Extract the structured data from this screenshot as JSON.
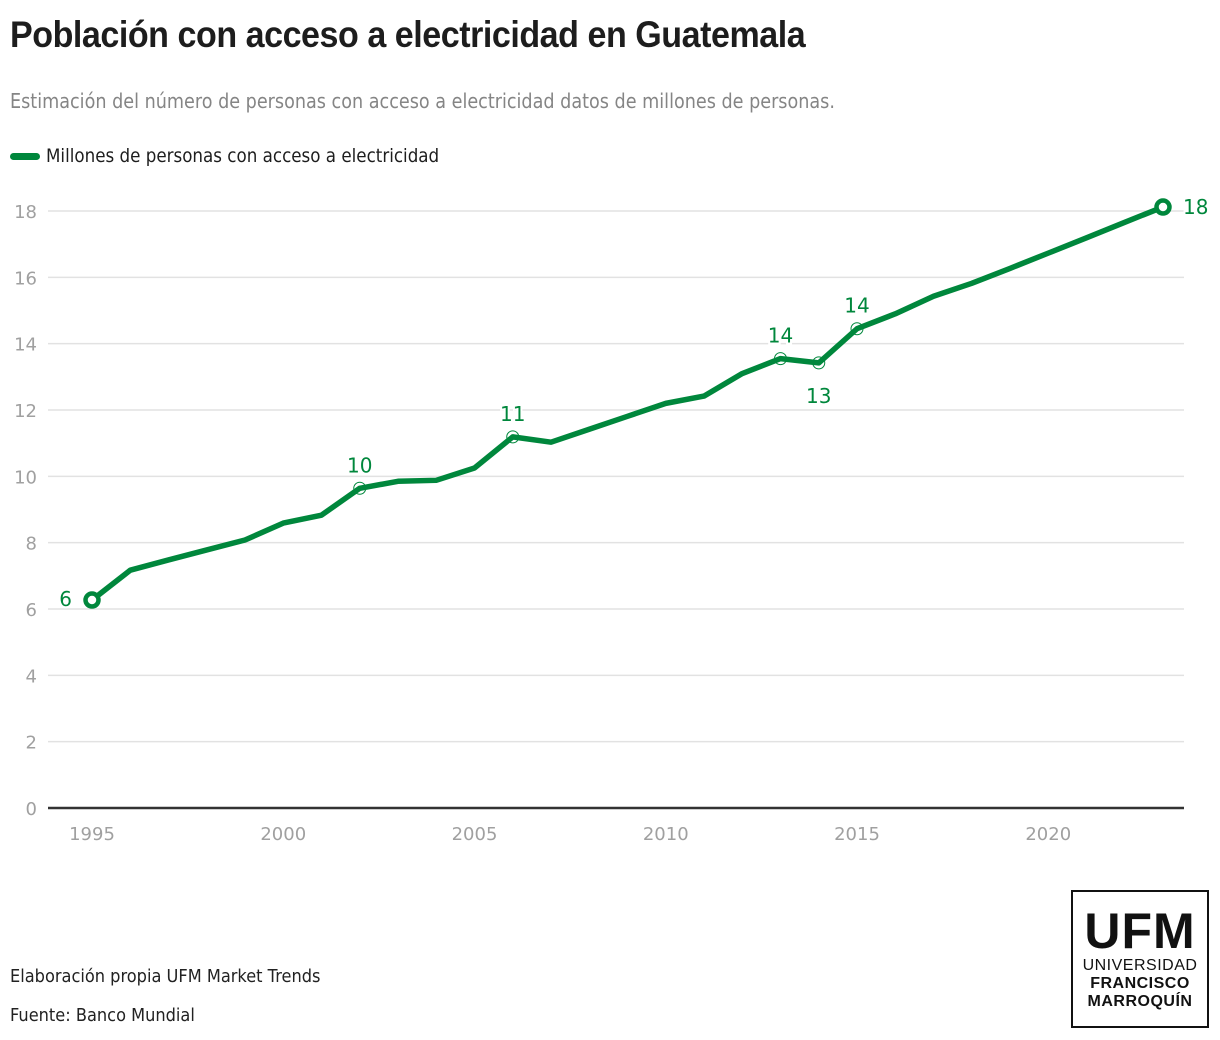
{
  "header": {
    "title": "Población con acceso a electricidad en Guatemala",
    "subtitle": "Estimación del número de personas con acceso a electricidad datos de millones de personas."
  },
  "colors": {
    "series": "#00873c",
    "grid": "#e2e2e2",
    "axis": "#333333",
    "tick_label": "#a0a0a0",
    "title": "#1d1d1d",
    "subtitle": "#858585"
  },
  "legend": {
    "label": "Millones de personas con acceso a electricidad"
  },
  "footer": {
    "credit": "Elaboración propia UFM Market Trends",
    "source": "Fuente: Banco Mundial"
  },
  "logo": {
    "acronym": "UFM",
    "line1": "UNIVERSIDAD",
    "line2": "FRANCISCO",
    "line3": "MARROQUÍN"
  },
  "chart_data": {
    "type": "line",
    "title": "Población con acceso a electricidad en Guatemala",
    "subtitle": "Estimación del número de personas con acceso a electricidad datos de millones de personas.",
    "xlabel": "",
    "ylabel": "",
    "xlim": [
      1995,
      2023
    ],
    "ylim": [
      0,
      18
    ],
    "grid": true,
    "legend_position": "top-left",
    "x_ticks": [
      1995,
      2000,
      2005,
      2010,
      2015,
      2020
    ],
    "x_tick_labels": [
      "1995",
      "2000",
      "2005",
      "2010",
      "2015",
      "2020"
    ],
    "y_ticks": [
      0,
      2,
      4,
      6,
      8,
      10,
      12,
      14,
      16,
      18
    ],
    "y_tick_labels": [
      "0",
      "2",
      "4",
      "6",
      "8",
      "10",
      "12",
      "14",
      "16",
      "18"
    ],
    "x": [
      1995,
      1996,
      1997,
      1998,
      1999,
      2000,
      2001,
      2002,
      2003,
      2004,
      2005,
      2006,
      2007,
      2008,
      2009,
      2010,
      2011,
      2012,
      2013,
      2014,
      2015,
      2016,
      2017,
      2018,
      2019,
      2020,
      2021,
      2022,
      2023
    ],
    "series": [
      {
        "name": "Millones de personas con acceso a electricidad",
        "values": [
          6.27,
          7.17,
          7.48,
          7.78,
          8.08,
          8.59,
          8.83,
          9.64,
          9.85,
          9.88,
          10.25,
          11.19,
          11.03,
          11.42,
          11.81,
          12.2,
          12.42,
          13.1,
          13.55,
          13.42,
          14.45,
          14.9,
          15.43,
          15.82,
          16.27,
          16.73,
          17.19,
          17.66,
          18.12
        ]
      }
    ],
    "annotations": [
      {
        "x": 1995,
        "value": 6.27,
        "label": "6",
        "position": "left",
        "marker": "endpoint"
      },
      {
        "x": 2002,
        "value": 9.64,
        "label": "10",
        "position": "above",
        "marker": "ring"
      },
      {
        "x": 2006,
        "value": 11.19,
        "label": "11",
        "position": "above",
        "marker": "ring"
      },
      {
        "x": 2013,
        "value": 13.55,
        "label": "14",
        "position": "above",
        "marker": "ring"
      },
      {
        "x": 2014,
        "value": 13.42,
        "label": "13",
        "position": "below",
        "marker": "ring"
      },
      {
        "x": 2015,
        "value": 14.45,
        "label": "14",
        "position": "above",
        "marker": "ring"
      },
      {
        "x": 2023,
        "value": 18.12,
        "label": "18",
        "position": "right",
        "marker": "endpoint"
      }
    ]
  }
}
